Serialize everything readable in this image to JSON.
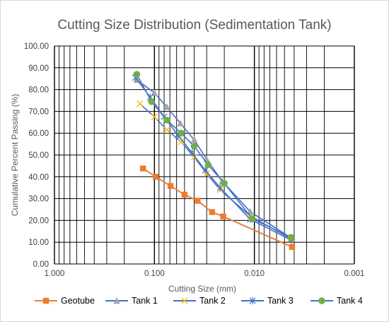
{
  "chart_data": {
    "type": "scatter",
    "title": "Cutting Size Distribution (Sedimentation Tank)",
    "xlabel": "Cutting Size (mm)",
    "ylabel": "Cumulative Percent Passing (%)",
    "x_scale": "log",
    "x_reversed": true,
    "xlim": [
      1.0,
      0.001
    ],
    "ylim": [
      0,
      100
    ],
    "x_ticks": [
      "1.000",
      "0.100",
      "0.010",
      "0.001"
    ],
    "y_ticks": [
      "0.00",
      "10.00",
      "20.00",
      "30.00",
      "40.00",
      "50.00",
      "60.00",
      "70.00",
      "80.00",
      "90.00",
      "100.00"
    ],
    "grid": true,
    "legend_position": "bottom",
    "series": [
      {
        "name": "Geotube",
        "color": "#ED7D31",
        "marker": "square",
        "x": [
          0.13,
          0.097,
          0.069,
          0.05,
          0.037,
          0.0265,
          0.0205,
          0.0042
        ],
        "y": [
          43.8,
          40.0,
          35.8,
          31.8,
          29.0,
          23.8,
          21.8,
          7.8
        ]
      },
      {
        "name": "Tank 1",
        "color": "#A5A5A5",
        "marker": "triangle",
        "x": [
          0.15,
          0.1,
          0.075,
          0.055,
          0.04,
          0.03,
          0.021,
          0.011,
          0.0043
        ],
        "y": [
          84.5,
          78.5,
          72.0,
          64.5,
          57.0,
          48.0,
          38.0,
          24.0,
          12.0
        ]
      },
      {
        "name": "Tank 2",
        "color": "#FFC000",
        "marker": "x",
        "x": [
          0.14,
          0.1,
          0.075,
          0.054,
          0.04,
          0.03,
          0.022,
          0.011,
          0.0043
        ],
        "y": [
          73.5,
          67.5,
          61.5,
          56.0,
          49.0,
          41.5,
          34.0,
          22.0,
          11.5
        ]
      },
      {
        "name": "Tank 3",
        "color": "#4472C4",
        "marker": "star",
        "x": [
          0.155,
          0.11,
          0.08,
          0.058,
          0.042,
          0.031,
          0.022,
          0.011,
          0.0043
        ],
        "y": [
          85.5,
          76.5,
          67.5,
          59.0,
          51.0,
          43.0,
          35.0,
          20.5,
          11.0
        ]
      },
      {
        "name": "Tank 4",
        "color": "#70AD47",
        "marker": "circle",
        "x": [
          0.15,
          0.107,
          0.075,
          0.054,
          0.04,
          0.029,
          0.02,
          0.0105,
          0.0043
        ],
        "y": [
          87.0,
          74.5,
          66.0,
          60.0,
          54.0,
          45.5,
          37.0,
          20.8,
          12.2
        ]
      }
    ]
  }
}
